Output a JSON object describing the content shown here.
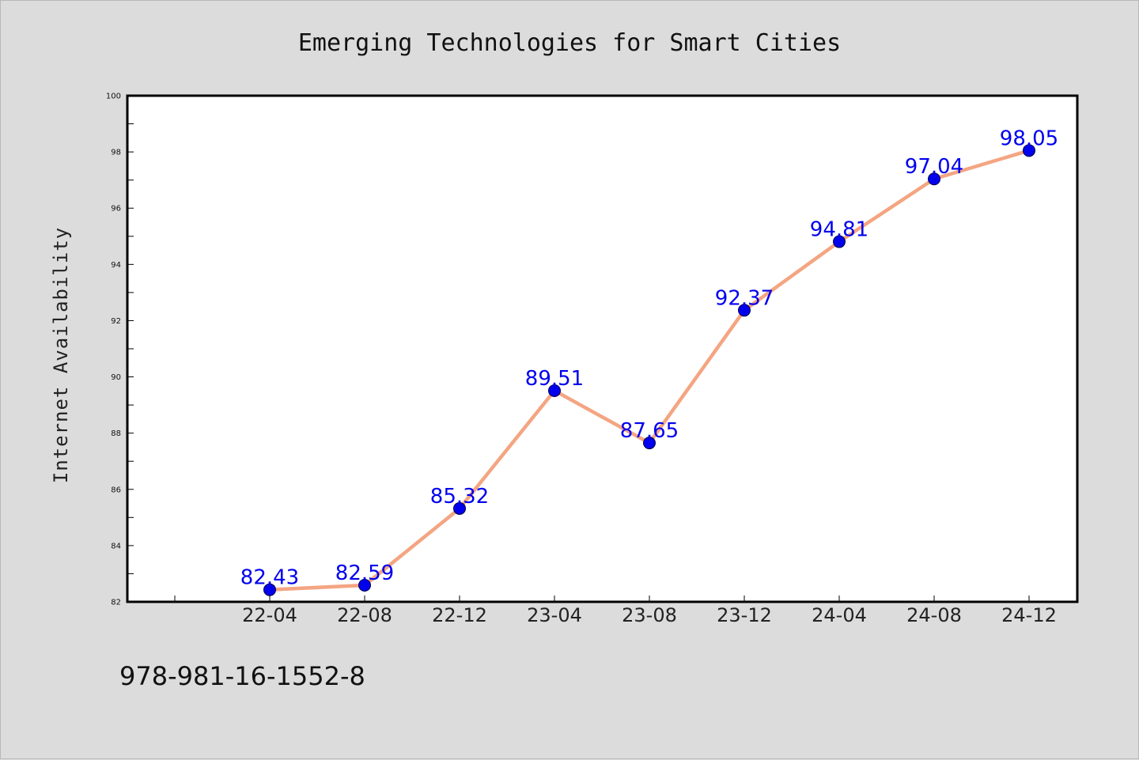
{
  "chart_data": {
    "type": "line",
    "title": "Emerging Technologies for Smart Cities",
    "xlabel": "",
    "ylabel": "Internet Availability",
    "categories": [
      "22-04",
      "22-08",
      "22-12",
      "23-04",
      "23-08",
      "23-12",
      "24-04",
      "24-08",
      "24-12"
    ],
    "series": [
      {
        "values": [
          82.43,
          82.59,
          85.32,
          89.51,
          87.65,
          92.37,
          94.81,
          97.04,
          98.05
        ]
      }
    ],
    "data_labels": [
      "82.43",
      "82.59",
      "85.32",
      "89.51",
      "87.65",
      "92.37",
      "94.81",
      "97.04",
      "98.05"
    ],
    "ylim": [
      82,
      100
    ],
    "yticks": [
      "82",
      "84",
      "86",
      "88",
      "90",
      "92",
      "94",
      "96",
      "98",
      "100"
    ],
    "grid": false,
    "legend": "none",
    "colors": {
      "line": "#f4a582",
      "marker": "#0000ee",
      "data_label": "#0000ee",
      "background": "#dcdcdc",
      "plot_area": "#ffffff"
    }
  },
  "footer": {
    "isbn": "978-981-16-1552-8"
  }
}
